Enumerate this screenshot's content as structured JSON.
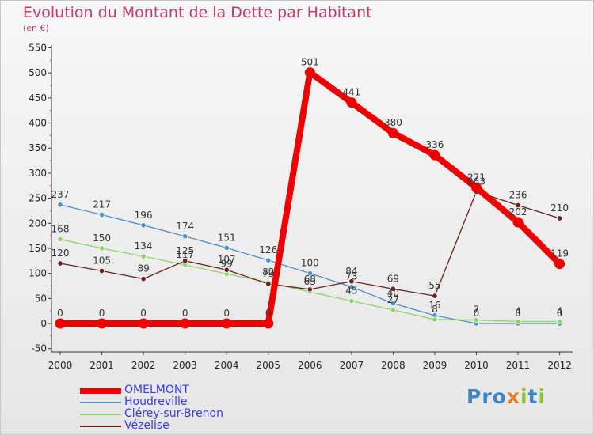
{
  "title": "Evolution du Montant de la Dette par Habitant",
  "subtitle": "(en €)",
  "logo_text": "Proxiti",
  "chart_data": {
    "type": "line",
    "title": "Evolution du Montant de la Dette par Habitant",
    "subtitle": "(en €)",
    "x": [
      "2000",
      "2001",
      "2002",
      "2003",
      "2004",
      "2005",
      "2006",
      "2007",
      "2008",
      "2009",
      "2010",
      "2011",
      "2012"
    ],
    "ylim": [
      -50,
      550
    ],
    "yticks": [
      -50,
      0,
      50,
      100,
      150,
      200,
      250,
      300,
      350,
      400,
      450,
      500,
      550
    ],
    "grid": false,
    "legend": "bottom-left",
    "series": [
      {
        "name": "Houdreville",
        "color": "#4f8fca",
        "values": [
          237,
          217,
          196,
          174,
          151,
          126,
          100,
          73,
          40,
          16,
          0,
          0,
          0
        ],
        "labels": [
          "237",
          "217",
          "196",
          "174",
          "151",
          "126",
          "100",
          "73",
          "40",
          "16",
          "0",
          "0",
          "0"
        ]
      },
      {
        "name": "Clérey-sur-Brenon",
        "color": "#8fd46a",
        "values": [
          168,
          150,
          134,
          117,
          99,
          82,
          63,
          45,
          27,
          8,
          7,
          4,
          4
        ],
        "labels": [
          "168",
          "150",
          "134",
          "117",
          "99",
          "82",
          "63",
          "45",
          "27",
          "8",
          "7",
          "4",
          "4"
        ]
      },
      {
        "name": "Vézelise",
        "color": "#6b1f1f",
        "values": [
          120,
          105,
          89,
          125,
          107,
          79,
          68,
          84,
          69,
          55,
          263,
          236,
          210
        ],
        "labels": [
          "120",
          "105",
          "89",
          "125",
          "107",
          "79",
          "68",
          "84",
          "69",
          "55",
          "263",
          "236",
          "210"
        ]
      },
      {
        "name": "OMELMONT",
        "color": "#ee0000",
        "values": [
          0,
          0,
          0,
          0,
          0,
          0,
          501,
          441,
          380,
          336,
          271,
          202,
          119
        ],
        "labels": [
          "0",
          "0",
          "0",
          "0",
          "0",
          "0",
          "501",
          "441",
          "380",
          "336",
          "271",
          "202",
          "119"
        ]
      }
    ],
    "legend_items": [
      {
        "name": "OMELMONT",
        "color": "#ee0000",
        "text_color": "#3a3aee"
      },
      {
        "name": "Houdreville",
        "color": "#4f8fca",
        "text_color": "#3a3aee"
      },
      {
        "name": "Clérey-sur-Brenon",
        "color": "#8fd46a",
        "text_color": "#3a3aee"
      },
      {
        "name": "Vézelise",
        "color": "#6b1f1f",
        "text_color": "#3a3aee"
      }
    ]
  }
}
